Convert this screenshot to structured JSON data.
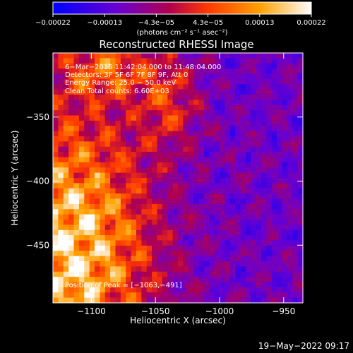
{
  "chart_data": {
    "type": "heatmap",
    "title": "Reconstructed RHESSI Image",
    "xlabel": "Heliocentric X (arcsec)",
    "ylabel": "Heliocentric Y (arcsec)",
    "xlim": [
      -1130,
      -935
    ],
    "ylim": [
      -495,
      -300
    ],
    "x_ticks": [
      {
        "value": -1100,
        "label": "−1100"
      },
      {
        "value": -1050,
        "label": "−1050"
      },
      {
        "value": -1000,
        "label": "−1000"
      },
      {
        "value": -950,
        "label": "−950"
      }
    ],
    "y_ticks": [
      {
        "value": -350,
        "label": "−350"
      },
      {
        "value": -400,
        "label": "−400"
      },
      {
        "value": -450,
        "label": "−450"
      }
    ],
    "colorbar": {
      "range": [
        -0.00022,
        0.00022
      ],
      "tick_labels": [
        "−0.00022",
        "−0.00013",
        "−4.3e−05",
        "4.3e−05",
        "0.00013",
        "0.00022"
      ],
      "unit_label": "(photons cm⁻² s⁻¹ asec⁻²)",
      "colormap": [
        "#0000ff",
        "#6a00d0",
        "#b0004e",
        "#ff3a00",
        "#ffa000",
        "#ffffff"
      ]
    },
    "annotations": [
      "6−Mar−2015 11:42:04.000 to 11:48:04.000",
      "Detectors: 3F 5F 6F 7F 8F 9F, Att 0",
      "Energy Range: 25.0 − 50.0 keV",
      "Clean     Total counts: 6.60E+03"
    ],
    "peak_label": "Position of Peak = [−1063,−491]",
    "peak": [
      -1063,
      -491
    ]
  },
  "footer": {
    "date_stamp": "19−May−2022 09:17"
  }
}
